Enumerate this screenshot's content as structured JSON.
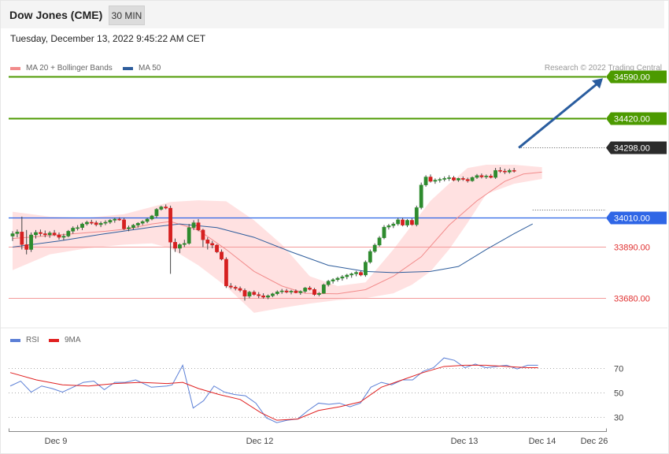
{
  "header": {
    "title": "Dow Jones (CME)",
    "timeframe_label": "30 MIN"
  },
  "timestamp": "Tuesday, December 13, 2022 9:45:22 AM CET",
  "legend": {
    "ma20": {
      "label": "MA 20 + Bollinger Bands",
      "color": "#f28b8b"
    },
    "ma50": {
      "label": "MA 50",
      "color": "#2e5d9c"
    }
  },
  "copyright": "Research © 2022 Trading Central",
  "rsi_legend": {
    "rsi": {
      "label": "RSI",
      "color": "#5b7fd6"
    },
    "ma9": {
      "label": "9MA",
      "color": "#e02020"
    }
  },
  "chart_data": [
    {
      "type": "candlestick",
      "title": "",
      "ylim": [
        33600,
        34620
      ],
      "x_ticks": [
        "Dec 9",
        "Dec 12",
        "Dec 13",
        "Dec 14",
        "Dec 26"
      ],
      "candles": [
        [
          33935,
          33955,
          33915,
          33945
        ],
        [
          33945,
          33962,
          33930,
          33952
        ],
        [
          33952,
          34015,
          33880,
          33900
        ],
        [
          33900,
          33960,
          33860,
          33880
        ],
        [
          33880,
          33950,
          33870,
          33940
        ],
        [
          33940,
          33960,
          33925,
          33950
        ],
        [
          33950,
          33962,
          33935,
          33945
        ],
        [
          33945,
          33958,
          33930,
          33940
        ],
        [
          33940,
          33955,
          33928,
          33948
        ],
        [
          33948,
          33960,
          33935,
          33940
        ],
        [
          33940,
          33950,
          33920,
          33930
        ],
        [
          33930,
          33945,
          33918,
          33935
        ],
        [
          33935,
          33960,
          33930,
          33955
        ],
        [
          33955,
          33975,
          33945,
          33968
        ],
        [
          33968,
          33980,
          33958,
          33970
        ],
        [
          33970,
          33990,
          33960,
          33985
        ],
        [
          33985,
          33998,
          33978,
          33992
        ],
        [
          33992,
          34002,
          33982,
          33990
        ],
        [
          33990,
          33998,
          33975,
          33982
        ],
        [
          33982,
          33995,
          33972,
          33988
        ],
        [
          33988,
          34000,
          33980,
          33992
        ],
        [
          33992,
          34005,
          33985,
          34000
        ],
        [
          34000,
          34010,
          33990,
          34005
        ],
        [
          34005,
          34012,
          33998,
          34002
        ],
        [
          34002,
          34010,
          33960,
          33965
        ],
        [
          33965,
          33978,
          33955,
          33970
        ],
        [
          33970,
          33985,
          33962,
          33980
        ],
        [
          33980,
          33992,
          33970,
          33988
        ],
        [
          33988,
          34000,
          33980,
          33995
        ],
        [
          33995,
          34010,
          33988,
          34005
        ],
        [
          34005,
          34022,
          34000,
          34018
        ],
        [
          34018,
          34050,
          34010,
          34045
        ],
        [
          34045,
          34060,
          34040,
          34055
        ],
        [
          34055,
          34065,
          34045,
          34050
        ],
        [
          34050,
          34060,
          33780,
          33910
        ],
        [
          33910,
          33925,
          33870,
          33885
        ],
        [
          33885,
          33905,
          33865,
          33900
        ],
        [
          33900,
          33920,
          33890,
          33905
        ],
        [
          33905,
          33985,
          33900,
          33970
        ],
        [
          33970,
          34000,
          33960,
          33990
        ],
        [
          33990,
          34005,
          33955,
          33960
        ],
        [
          33960,
          33965,
          33890,
          33920
        ],
        [
          33920,
          33930,
          33880,
          33905
        ],
        [
          33905,
          33915,
          33885,
          33898
        ],
        [
          33898,
          33902,
          33865,
          33870
        ],
        [
          33870,
          33880,
          33835,
          33840
        ],
        [
          33840,
          33848,
          33722,
          33730
        ],
        [
          33730,
          33742,
          33718,
          33725
        ],
        [
          33725,
          33732,
          33712,
          33720
        ],
        [
          33720,
          33728,
          33705,
          33712
        ],
        [
          33712,
          33720,
          33670,
          33688
        ],
        [
          33688,
          33710,
          33680,
          33705
        ],
        [
          33705,
          33712,
          33690,
          33695
        ],
        [
          33695,
          33705,
          33680,
          33690
        ],
        [
          33690,
          33700,
          33678,
          33684
        ],
        [
          33684,
          33695,
          33676,
          33690
        ],
        [
          33690,
          33702,
          33684,
          33698
        ],
        [
          33698,
          33712,
          33692,
          33706
        ],
        [
          33706,
          33718,
          33698,
          33710
        ],
        [
          33710,
          33718,
          33700,
          33705
        ],
        [
          33705,
          33714,
          33696,
          33709
        ],
        [
          33709,
          33716,
          33700,
          33702
        ],
        [
          33702,
          33712,
          33694,
          33708
        ],
        [
          33708,
          33726,
          33702,
          33722
        ],
        [
          33722,
          33730,
          33712,
          33716
        ],
        [
          33716,
          33722,
          33690,
          33695
        ],
        [
          33695,
          33705,
          33688,
          33700
        ],
        [
          33700,
          33740,
          33698,
          33735
        ],
        [
          33735,
          33755,
          33728,
          33750
        ],
        [
          33750,
          33762,
          33740,
          33756
        ],
        [
          33756,
          33768,
          33748,
          33762
        ],
        [
          33762,
          33775,
          33752,
          33768
        ],
        [
          33768,
          33780,
          33758,
          33775
        ],
        [
          33775,
          33785,
          33764,
          33780
        ],
        [
          33780,
          33792,
          33770,
          33786
        ],
        [
          33786,
          33792,
          33770,
          33775
        ],
        [
          33775,
          33835,
          33768,
          33828
        ],
        [
          33828,
          33880,
          33822,
          33872
        ],
        [
          33872,
          33905,
          33866,
          33898
        ],
        [
          33898,
          33935,
          33892,
          33928
        ],
        [
          33928,
          33980,
          33922,
          33972
        ],
        [
          33972,
          33985,
          33962,
          33978
        ],
        [
          33978,
          33992,
          33968,
          33985
        ],
        [
          33985,
          34010,
          33978,
          34002
        ],
        [
          34002,
          34010,
          33975,
          33980
        ],
        [
          33980,
          34005,
          33972,
          34000
        ],
        [
          34000,
          34008,
          33978,
          33982
        ],
        [
          33982,
          34060,
          33975,
          34052
        ],
        [
          34052,
          34155,
          34045,
          34145
        ],
        [
          34145,
          34185,
          34138,
          34178
        ],
        [
          34178,
          34188,
          34155,
          34160
        ],
        [
          34160,
          34172,
          34150,
          34165
        ],
        [
          34165,
          34175,
          34155,
          34168
        ],
        [
          34168,
          34180,
          34160,
          34172
        ],
        [
          34172,
          34185,
          34162,
          34175
        ],
        [
          34175,
          34182,
          34160,
          34165
        ],
        [
          34165,
          34175,
          34158,
          34172
        ],
        [
          34172,
          34180,
          34162,
          34168
        ],
        [
          34168,
          34175,
          34155,
          34162
        ],
        [
          34162,
          34180,
          34158,
          34176
        ],
        [
          34176,
          34190,
          34170,
          34184
        ],
        [
          34184,
          34192,
          34172,
          34178
        ],
        [
          34178,
          34188,
          34170,
          34182
        ],
        [
          34182,
          34190,
          34172,
          34176
        ],
        [
          34176,
          34215,
          34170,
          34205
        ],
        [
          34205,
          34218,
          34195,
          34202
        ],
        [
          34202,
          34212,
          34190,
          34198
        ],
        [
          34198,
          34212,
          34192,
          34205
        ],
        [
          34205,
          34215,
          34196,
          34202
        ]
      ],
      "ma20": [
        [
          0,
          33925
        ],
        [
          10,
          33940
        ],
        [
          20,
          33955
        ],
        [
          25,
          33965
        ],
        [
          30,
          33985
        ],
        [
          34,
          33995
        ],
        [
          40,
          33960
        ],
        [
          46,
          33880
        ],
        [
          52,
          33790
        ],
        [
          58,
          33730
        ],
        [
          63,
          33700
        ],
        [
          70,
          33698
        ],
        [
          76,
          33715
        ],
        [
          82,
          33770
        ],
        [
          88,
          33850
        ],
        [
          94,
          33980
        ],
        [
          100,
          34080
        ],
        [
          106,
          34160
        ],
        [
          110,
          34190
        ],
        [
          114,
          34198
        ]
      ],
      "ma50": [
        [
          0,
          33890
        ],
        [
          10,
          33915
        ],
        [
          20,
          33945
        ],
        [
          30,
          33972
        ],
        [
          36,
          33985
        ],
        [
          44,
          33970
        ],
        [
          52,
          33930
        ],
        [
          60,
          33870
        ],
        [
          68,
          33815
        ],
        [
          76,
          33790
        ],
        [
          82,
          33785
        ],
        [
          90,
          33790
        ],
        [
          96,
          33810
        ],
        [
          102,
          33880
        ],
        [
          108,
          33945
        ],
        [
          112,
          33985
        ]
      ],
      "bb_upper": [
        [
          0,
          34035
        ],
        [
          8,
          34015
        ],
        [
          16,
          34010
        ],
        [
          24,
          34025
        ],
        [
          30,
          34055
        ],
        [
          34,
          34075
        ],
        [
          40,
          34082
        ],
        [
          46,
          34078
        ],
        [
          52,
          34000
        ],
        [
          58,
          33900
        ],
        [
          64,
          33770
        ],
        [
          70,
          33730
        ],
        [
          76,
          33745
        ],
        [
          82,
          33880
        ],
        [
          86,
          33980
        ],
        [
          90,
          34080
        ],
        [
          94,
          34150
        ],
        [
          98,
          34215
        ],
        [
          102,
          34228
        ],
        [
          108,
          34228
        ],
        [
          114,
          34218
        ]
      ],
      "bb_lower": [
        [
          0,
          33795
        ],
        [
          8,
          33860
        ],
        [
          16,
          33885
        ],
        [
          24,
          33900
        ],
        [
          30,
          33905
        ],
        [
          34,
          33885
        ],
        [
          40,
          33815
        ],
        [
          46,
          33728
        ],
        [
          52,
          33620
        ],
        [
          58,
          33640
        ],
        [
          64,
          33658
        ],
        [
          70,
          33672
        ],
        [
          76,
          33680
        ],
        [
          82,
          33700
        ],
        [
          86,
          33735
        ],
        [
          90,
          33790
        ],
        [
          94,
          33880
        ],
        [
          98,
          33990
        ],
        [
          102,
          34108
        ],
        [
          108,
          34150
        ],
        [
          114,
          34170
        ]
      ],
      "levels": [
        {
          "label": "34590.00",
          "value": 34590,
          "color": "#4c9a00",
          "kind": "resistance"
        },
        {
          "label": "34420.00",
          "value": 34420,
          "color": "#4c9a00",
          "kind": "resistance"
        },
        {
          "label": "34298.00",
          "value": 34298,
          "color": "#2b2b2b",
          "kind": "last"
        },
        {
          "label": "34010.00",
          "value": 34010,
          "color": "#2f66e6",
          "kind": "pivot"
        },
        {
          "label": "33890.00",
          "value": 33890,
          "color": "#e03030",
          "kind": "support"
        },
        {
          "label": "33680.00",
          "value": 33680,
          "color": "#e03030",
          "kind": "support"
        }
      ],
      "projection_arrow": {
        "from": 34298,
        "to": 34590,
        "color": "#2a5d9f"
      }
    },
    {
      "type": "line",
      "title": "",
      "ylim": [
        20,
        80
      ],
      "y_ticks": [
        30,
        50,
        70
      ],
      "rsi": [
        [
          0,
          55
        ],
        [
          4,
          59
        ],
        [
          8,
          50
        ],
        [
          12,
          55
        ],
        [
          16,
          53
        ],
        [
          20,
          50
        ],
        [
          24,
          54
        ],
        [
          28,
          58
        ],
        [
          32,
          59
        ],
        [
          36,
          52
        ],
        [
          40,
          58
        ],
        [
          44,
          58
        ],
        [
          48,
          60
        ],
        [
          50,
          58
        ],
        [
          54,
          54
        ],
        [
          60,
          55
        ],
        [
          62,
          56
        ],
        [
          66,
          72
        ],
        [
          70,
          37
        ],
        [
          74,
          43
        ],
        [
          78,
          55
        ],
        [
          82,
          50
        ],
        [
          86,
          48
        ],
        [
          90,
          47
        ],
        [
          94,
          41
        ],
        [
          98,
          29
        ],
        [
          102,
          25
        ],
        [
          106,
          27
        ],
        [
          110,
          28
        ],
        [
          114,
          35
        ],
        [
          118,
          41
        ],
        [
          122,
          40
        ],
        [
          126,
          41
        ],
        [
          130,
          38
        ],
        [
          134,
          41
        ],
        [
          138,
          54
        ],
        [
          142,
          58
        ],
        [
          146,
          56
        ],
        [
          150,
          60
        ],
        [
          154,
          60
        ],
        [
          158,
          67
        ],
        [
          162,
          70
        ],
        [
          166,
          78
        ],
        [
          170,
          76
        ],
        [
          174,
          70
        ],
        [
          178,
          73
        ],
        [
          182,
          70
        ],
        [
          186,
          71
        ],
        [
          190,
          72
        ],
        [
          194,
          69
        ],
        [
          198,
          72
        ],
        [
          202,
          72
        ]
      ],
      "ma9": [
        [
          0,
          66
        ],
        [
          10,
          60
        ],
        [
          20,
          56
        ],
        [
          30,
          55
        ],
        [
          40,
          57
        ],
        [
          50,
          58
        ],
        [
          60,
          57
        ],
        [
          66,
          58
        ],
        [
          72,
          53
        ],
        [
          80,
          48
        ],
        [
          88,
          44
        ],
        [
          96,
          33
        ],
        [
          102,
          27
        ],
        [
          110,
          28
        ],
        [
          118,
          35
        ],
        [
          126,
          38
        ],
        [
          134,
          42
        ],
        [
          142,
          54
        ],
        [
          150,
          60
        ],
        [
          158,
          66
        ],
        [
          166,
          71
        ],
        [
          174,
          72
        ],
        [
          182,
          72
        ],
        [
          190,
          71
        ],
        [
          198,
          70
        ],
        [
          202,
          70
        ]
      ]
    }
  ]
}
